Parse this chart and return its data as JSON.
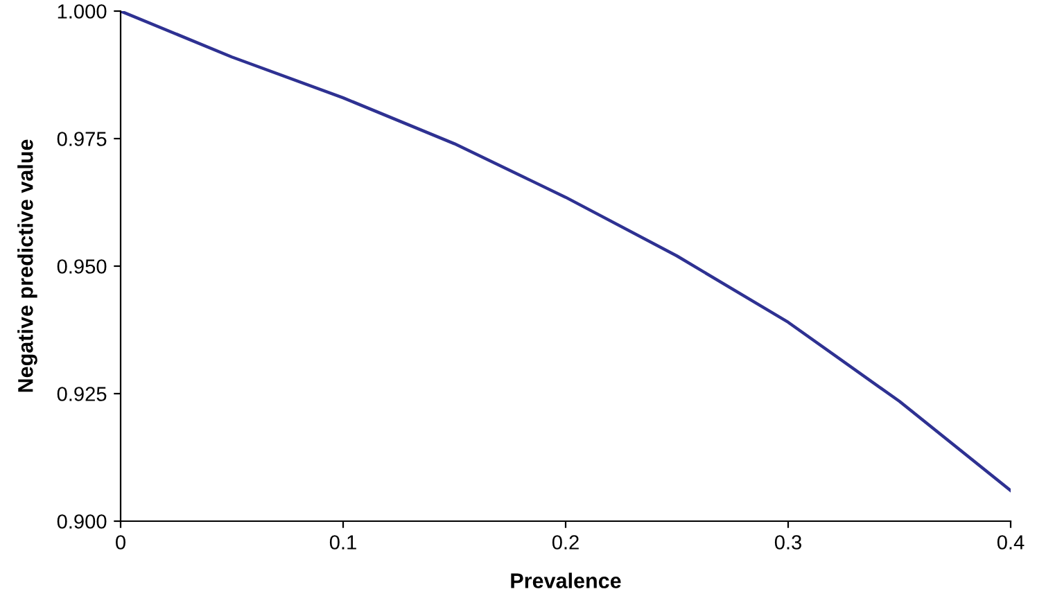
{
  "chart_data": {
    "type": "line",
    "xlabel": "Prevalence",
    "ylabel": "Negative predictive value",
    "x": [
      0,
      0.05,
      0.1,
      0.15,
      0.2,
      0.25,
      0.3,
      0.35,
      0.4
    ],
    "series": [
      {
        "color": "#2e3192",
        "values": [
          1.0,
          0.991,
          0.983,
          0.974,
          0.9635,
          0.952,
          0.939,
          0.9235,
          0.906
        ]
      }
    ],
    "xlim": [
      0,
      0.4
    ],
    "ylim": [
      0.9,
      1.0
    ],
    "xticks": [
      {
        "value": 0,
        "label": "0"
      },
      0.1,
      0.2,
      0.3,
      0.4
    ],
    "yticks": [
      {
        "value": 0.9,
        "label": "0.900"
      },
      {
        "value": 0.925,
        "label": "0.925"
      },
      {
        "value": 0.95,
        "label": "0.950"
      },
      {
        "value": 0.975,
        "label": "0.975"
      },
      {
        "value": 1.0,
        "label": "1.000"
      }
    ],
    "grid": false,
    "marker": "none",
    "line_style": "solid"
  }
}
